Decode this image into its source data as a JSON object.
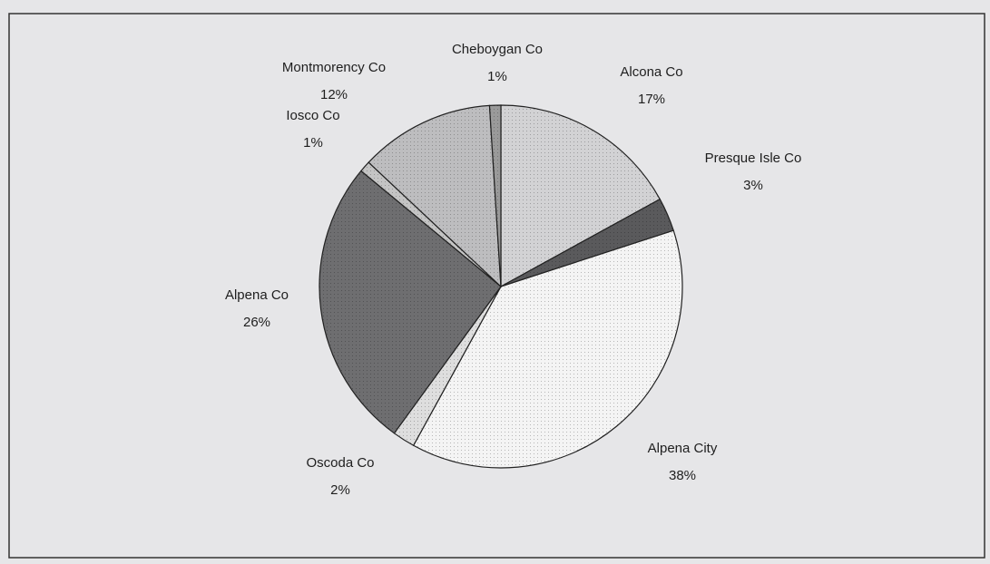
{
  "chart_data": {
    "type": "pie",
    "categories": [
      "Alcona Co",
      "Presque Isle Co",
      "Alpena City",
      "Oscoda Co",
      "Alpena Co",
      "Iosco Co",
      "Montmorency Co",
      "Cheboygan Co"
    ],
    "values": [
      17,
      3,
      38,
      2,
      26,
      1,
      12,
      1
    ],
    "value_labels": [
      "17%",
      "3%",
      "38%",
      "2%",
      "26%",
      "1%",
      "12%",
      "1%"
    ],
    "colors": [
      "#d2d2d4",
      "#5a5a5c",
      "#f4f4f4",
      "#dedede",
      "#6e6e70",
      "#c4c4c4",
      "#bdbdbf",
      "#9a9a9a"
    ]
  }
}
